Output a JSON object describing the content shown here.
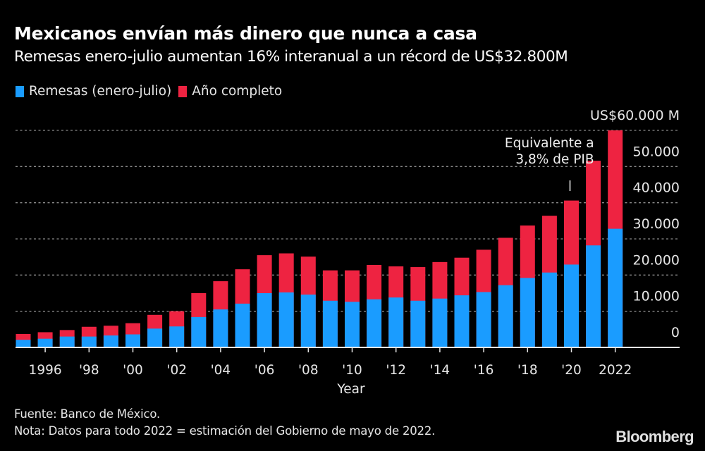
{
  "header": {
    "title": "Mexicanos envían más dinero que nunca a casa",
    "subtitle": "Remesas enero-julio aumentan 16% interanual a un récord de US$32.800M"
  },
  "footer": {
    "source": "Fuente: Banco de México.",
    "note": "Nota: Datos para todo 2022 = estimación del Gobierno de mayo de 2022.",
    "logo": "Bloomberg"
  },
  "colors": {
    "background": "#000000",
    "remesas": "#1a9cff",
    "anio_completo": "#ee2341",
    "grid": "#8a8a8a",
    "axis": "#e6e6e6",
    "text": "#e6e6e6"
  },
  "chart_data": {
    "type": "bar",
    "stacked": true,
    "title": "Mexicanos envían más dinero que nunca a casa",
    "subtitle": "Remesas enero-julio aumentan 16% interanual a un récord de US$32.800M",
    "xlabel": "Year",
    "ylabel": "",
    "y_unit_label": "US$60.000 M",
    "ylim": [
      0,
      60000
    ],
    "yticks": [
      0,
      10000,
      20000,
      30000,
      40000,
      50000,
      60000
    ],
    "ytick_labels": [
      "0",
      "10.000",
      "20.000",
      "30.000",
      "40.000",
      "50.000",
      "60.000"
    ],
    "y_axis_side": "right",
    "grid": true,
    "legend_position": "top-left",
    "x": [
      1995,
      1996,
      1997,
      1998,
      1999,
      2000,
      2001,
      2002,
      2003,
      2004,
      2005,
      2006,
      2007,
      2008,
      2009,
      2010,
      2011,
      2012,
      2013,
      2014,
      2015,
      2016,
      2017,
      2018,
      2019,
      2020,
      2021,
      2022
    ],
    "xticks": [
      1996,
      1998,
      2000,
      2002,
      2004,
      2006,
      2008,
      2010,
      2012,
      2014,
      2016,
      2018,
      2020,
      2022
    ],
    "xtick_labels": [
      "1996",
      "'98",
      "'00",
      "'02",
      "'04",
      "'06",
      "'08",
      "'10",
      "'12",
      "'14",
      "'16",
      "'18",
      "'20",
      "2022"
    ],
    "series": [
      {
        "name": "Remesas (enero-julio)",
        "color": "#1a9cff",
        "values": [
          2100,
          2400,
          3000,
          3000,
          3300,
          3600,
          5200,
          5800,
          8400,
          10500,
          12100,
          15000,
          15200,
          14600,
          12900,
          12600,
          13300,
          13800,
          12900,
          13500,
          14400,
          15300,
          17200,
          19200,
          20700,
          22900,
          28200,
          32800
        ]
      },
      {
        "name": "Año completo",
        "color": "#ee2341",
        "values": [
          3700,
          4200,
          4800,
          5700,
          6000,
          6700,
          9000,
          10000,
          15000,
          18300,
          21600,
          25500,
          26000,
          25100,
          21300,
          21300,
          22800,
          22400,
          22200,
          23600,
          24800,
          27000,
          30300,
          33700,
          36400,
          40600,
          51600,
          60000
        ]
      }
    ],
    "annotations": [
      {
        "text_lines": [
          "Equivalente a",
          "3,8% de PIB"
        ],
        "target_year": 2020
      }
    ]
  }
}
